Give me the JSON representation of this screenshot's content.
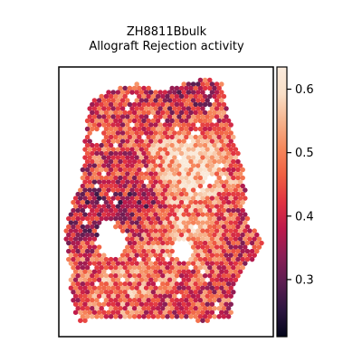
{
  "chart_data": {
    "type": "heatmap",
    "title_line1": "ZH8811Bbulk",
    "title_line2": "Allograft Rejection activity",
    "xlabel": "",
    "ylabel": "",
    "colormap": "rocket",
    "colorbar": {
      "vmin": 0.21,
      "vmax": 0.635,
      "ticks": [
        0.3,
        0.4,
        0.5,
        0.6
      ],
      "tick_labels": [
        "0.3",
        "0.4",
        "0.5",
        "0.6"
      ]
    },
    "colormap_stops": [
      "#03051a",
      "#2d1641",
      "#5c1e51",
      "#8b1f56",
      "#bd1a4c",
      "#e13342",
      "#f06043",
      "#f6895d",
      "#f6b48e",
      "#f9dfc7",
      "#faebdd"
    ],
    "spatial_pattern": {
      "description_values": "Per-spot activity, mostly 0.35-0.55, higher (~0.55-0.62) in upper-right center, lower (~0.25-0.33) scattered in left/bottom.",
      "range": [
        0.22,
        0.63
      ]
    }
  }
}
